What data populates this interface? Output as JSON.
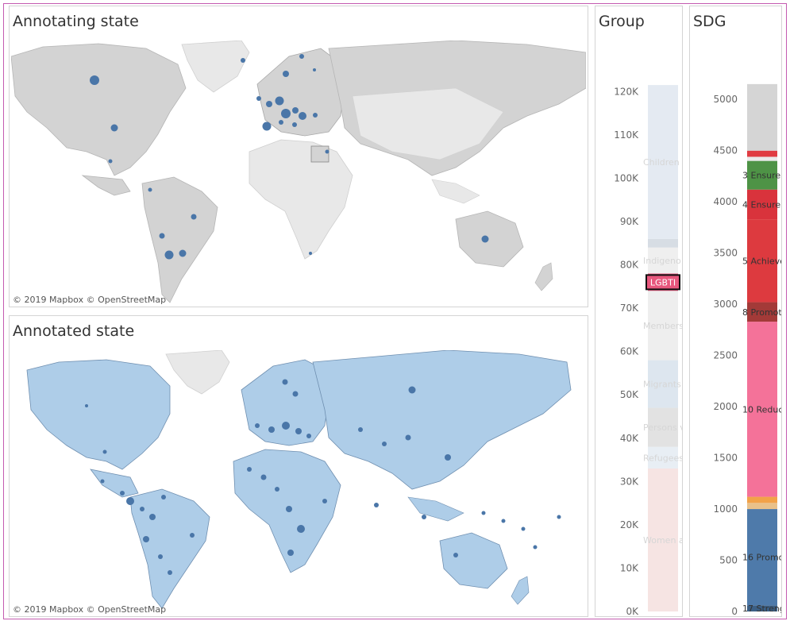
{
  "panels": {
    "annotating": {
      "title": "Annotating state",
      "attribution": "© 2019 Mapbox  © OpenStreetMap"
    },
    "annotated": {
      "title": "Annotated state",
      "attribution": "© 2019 Mapbox  © OpenStreetMap"
    },
    "group": {
      "title": "Group"
    },
    "sdg": {
      "title": "SDG"
    }
  },
  "colors": {
    "land_grey": "#d3d3d3",
    "land_light": "#e8e8e8",
    "land_blue": "#aecde8",
    "dot_blue": "#4a76a8",
    "highlight_pink": "#e8577d"
  },
  "chart_data": [
    {
      "type": "bar",
      "stacked": true,
      "title": "Group",
      "y_ticks": [
        "0K",
        "10K",
        "20K",
        "30K",
        "40K",
        "50K",
        "60K",
        "70K",
        "80K",
        "90K",
        "100K",
        "110K",
        "120K"
      ],
      "ylim": [
        0,
        125000
      ],
      "series": [
        {
          "name": "Women a",
          "from": 0,
          "to": 33000,
          "color": "#f6e4e3"
        },
        {
          "name": "Refugees",
          "from": 33000,
          "to": 38000,
          "color": "#e8eef4"
        },
        {
          "name": "Persons v",
          "from": 38000,
          "to": 47000,
          "color": "#e2e2e2"
        },
        {
          "name": "Migrants",
          "from": 47000,
          "to": 58000,
          "color": "#dde6ef"
        },
        {
          "name": "Members",
          "from": 58000,
          "to": 74000,
          "color": "#eeeeee"
        },
        {
          "name": "LGBTI",
          "from": 74000,
          "to": 78000,
          "color": "#e8577d",
          "highlighted": true
        },
        {
          "name": "Indigeno",
          "from": 78000,
          "to": 84000,
          "color": "#efefef"
        },
        {
          "name": "",
          "from": 84000,
          "to": 86000,
          "color": "#d7dde4"
        },
        {
          "name": "Children",
          "from": 86000,
          "to": 121500,
          "color": "#e4eaf2"
        }
      ]
    },
    {
      "type": "bar",
      "stacked": true,
      "title": "SDG",
      "y_ticks": [
        "0",
        "500",
        "1000",
        "1500",
        "2000",
        "2500",
        "3000",
        "3500",
        "4000",
        "4500",
        "5000"
      ],
      "ylim": [
        0,
        5250
      ],
      "series": [
        {
          "name": "17 Streng",
          "from": 0,
          "to": 60,
          "color": "#3b5f85"
        },
        {
          "name": "16 Promo",
          "from": 60,
          "to": 1000,
          "color": "#4e7aaa"
        },
        {
          "name": "",
          "from": 1000,
          "to": 1060,
          "color": "#e9c18a"
        },
        {
          "name": "",
          "from": 1060,
          "to": 1120,
          "color": "#f2a248"
        },
        {
          "name": "10 Reduc",
          "from": 1120,
          "to": 2830,
          "color": "#f47299"
        },
        {
          "name": "8 Promot",
          "from": 2830,
          "to": 3020,
          "color": "#a33a38"
        },
        {
          "name": "5 Achieve",
          "from": 3020,
          "to": 3830,
          "color": "#dd3a3f"
        },
        {
          "name": "4 Ensure",
          "from": 3830,
          "to": 4120,
          "color": "#d9333c"
        },
        {
          "name": "3 Ensure",
          "from": 4120,
          "to": 4400,
          "color": "#4e9346"
        },
        {
          "name": "",
          "from": 4400,
          "to": 4440,
          "color": "#eaeaea"
        },
        {
          "name": "",
          "from": 4440,
          "to": 4500,
          "color": "#e03c42"
        },
        {
          "name": "",
          "from": 4500,
          "to": 5150,
          "color": "#d5d5d5"
        }
      ]
    }
  ]
}
